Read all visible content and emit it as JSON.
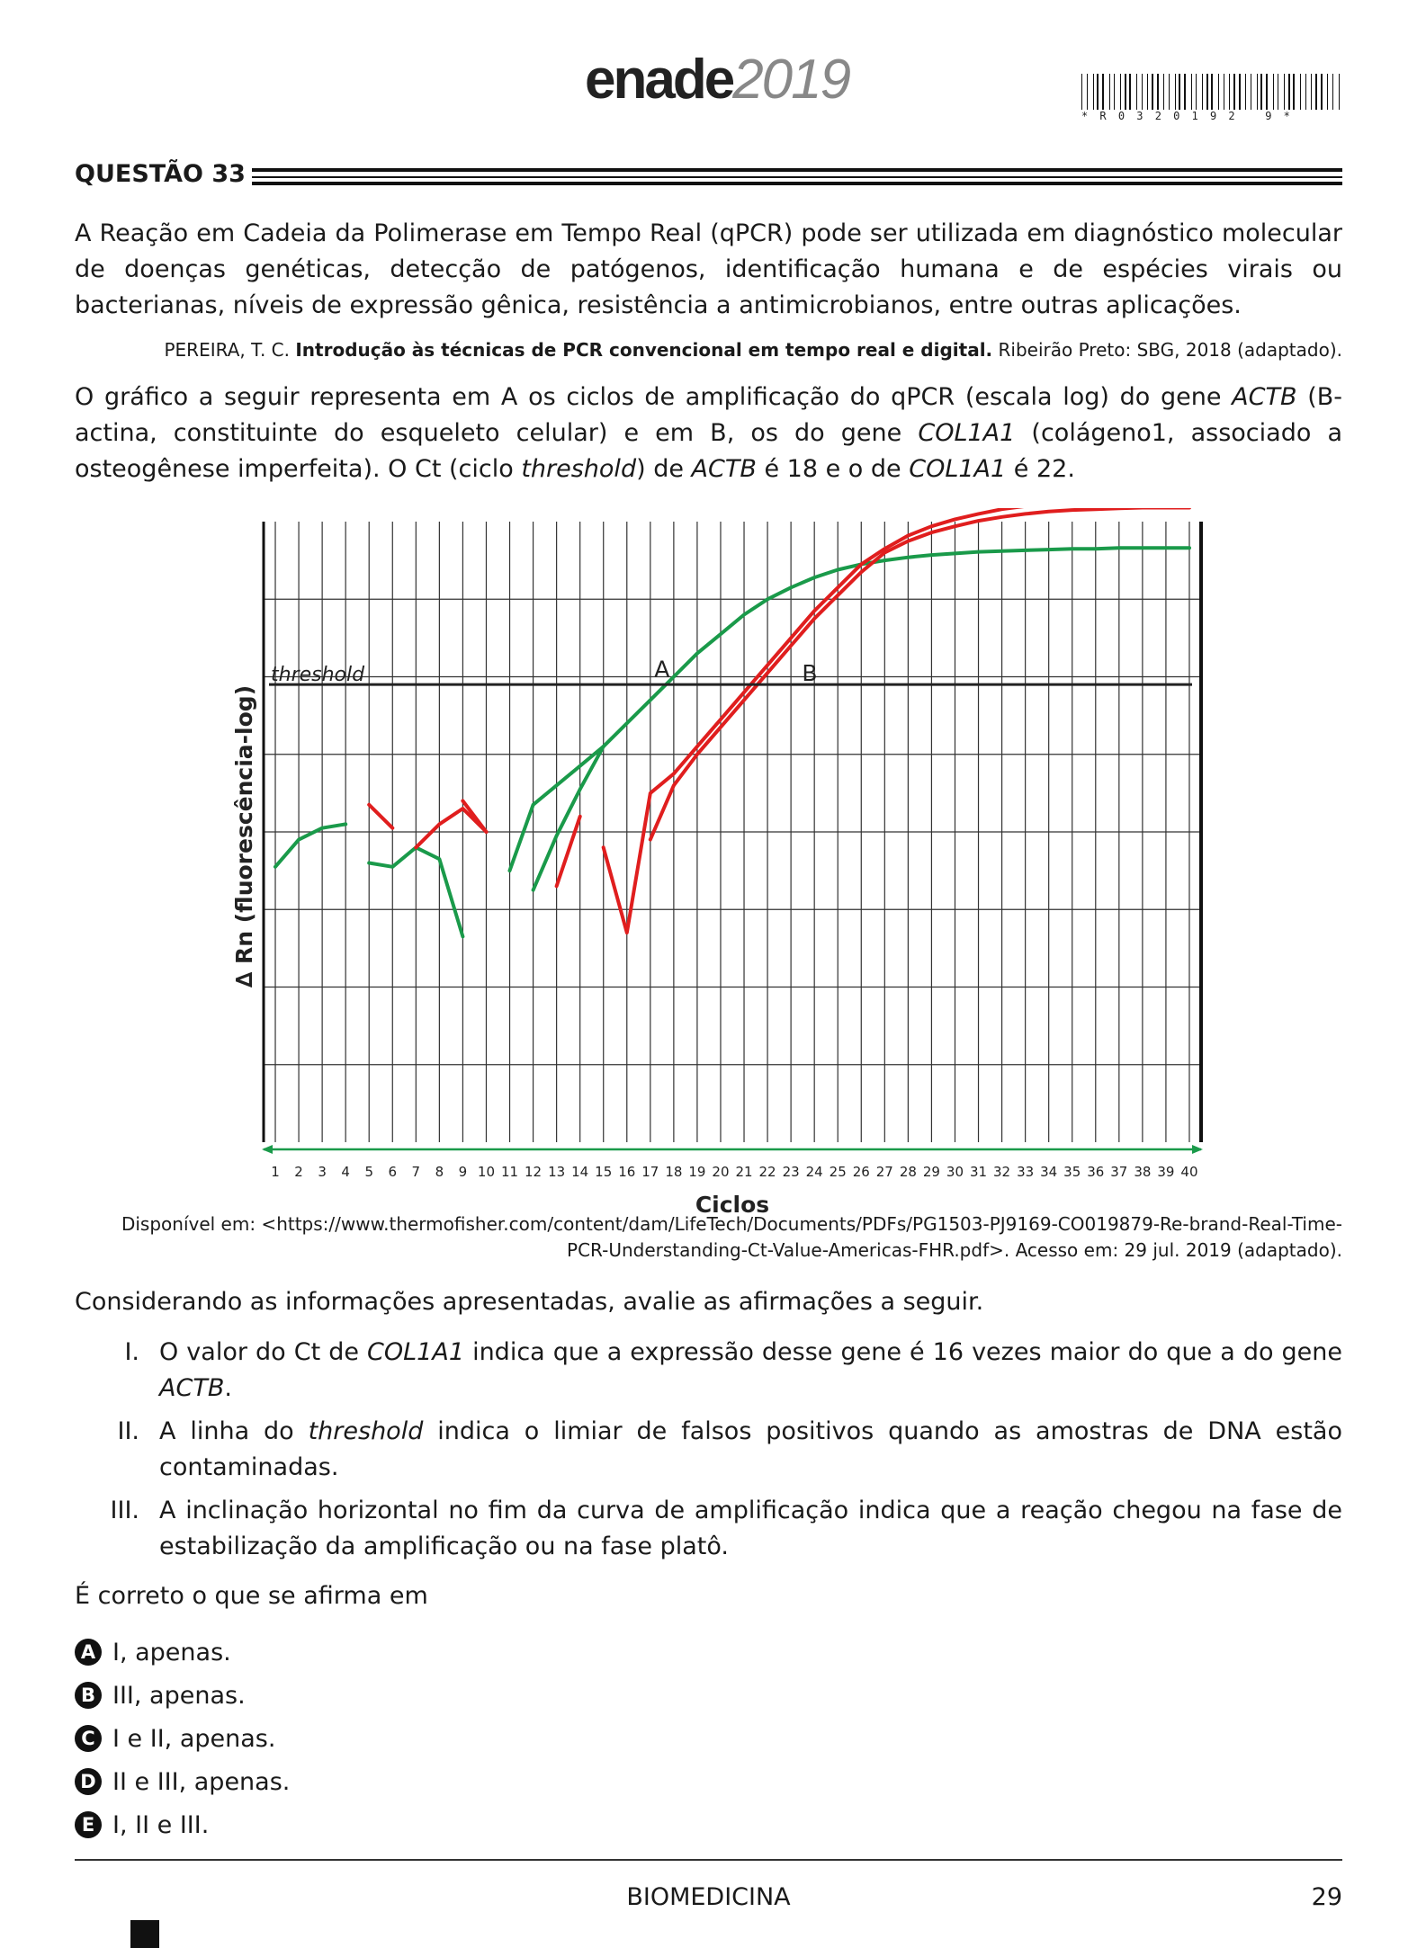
{
  "header": {
    "logo_word": "enade",
    "logo_year": "2019",
    "barcode_text": "*R0320192 9*"
  },
  "question": {
    "title": "QUESTÃO 33",
    "intro": "A Reação em Cadeia da Polimerase em Tempo Real (qPCR) pode ser utilizada em diagnóstico molecular de doenças genéticas, detecção de patógenos, identificação humana e de espécies virais ou bacterianas, níveis de expressão gênica, resistência a antimicrobianos, entre outras aplicações.",
    "citation_author": "PEREIRA, T. C. ",
    "citation_title": "Introdução às técnicas de PCR convencional em tempo real e digital.",
    "citation_rest": " Ribeirão Preto: SBG, 2018 (adaptado).",
    "graph_text_1": "O gráfico a seguir representa em A os ciclos de amplificação do qPCR (escala log) do gene ",
    "gene_actb": "ACTB",
    "graph_text_2": " (B-actina, constituinte do esqueleto celular) e em B, os do gene ",
    "gene_col": "COL1A1",
    "graph_text_3": " (colágeno1, associado a osteogênese imperfeita). O Ct (ciclo ",
    "threshold_word": "threshold",
    "graph_text_4": ") de ",
    "graph_text_5": " é 18 e o de ",
    "graph_text_6": " é 22.",
    "source_line_1": "Disponível em: <https://www.thermofisher.com/content/dam/LifeTech/Documents/PDFs/PG1503-PJ9169-CO019879-Re-brand-Real-Time-",
    "source_line_2": "PCR-Understanding-Ct-Value-Americas-FHR.pdf>. Acesso em: 29 jul. 2019 (adaptado).",
    "prompt": "Considerando as informações apresentadas, avalie as afirmações a seguir.",
    "statements": [
      {
        "num": "I.",
        "a": "O valor do Ct de ",
        "gene": "COL1A1",
        "b": " indica que a expressão desse gene é 16 vezes maior do que a do gene ",
        "gene2": "ACTB",
        "c": "."
      },
      {
        "num": "II.",
        "a": "A linha do ",
        "em": "threshold",
        "b": " indica o limiar de falsos positivos quando as amostras de DNA estão contaminadas."
      },
      {
        "num": "III.",
        "text": "A inclinação horizontal no fim da curva de amplificação indica que a reação chegou na fase de estabilização da amplificação ou na fase platô."
      }
    ],
    "ask": "É correto o que se afirma em",
    "options": [
      {
        "letter": "A",
        "text": "I, apenas."
      },
      {
        "letter": "B",
        "text": "III, apenas."
      },
      {
        "letter": "C",
        "text": "I e II, apenas."
      },
      {
        "letter": "D",
        "text": "II e III, apenas."
      },
      {
        "letter": "E",
        "text": "I, II e III."
      }
    ]
  },
  "chart_data": {
    "type": "line",
    "xlabel": "Ciclos",
    "ylabel": "∆ Rn (fluorescência-log)",
    "x_ticks": [
      1,
      2,
      3,
      4,
      5,
      6,
      7,
      8,
      9,
      10,
      11,
      12,
      13,
      14,
      15,
      16,
      17,
      18,
      19,
      20,
      21,
      22,
      23,
      24,
      25,
      26,
      27,
      28,
      29,
      30,
      31,
      32,
      33,
      34,
      35,
      36,
      37,
      38,
      39,
      40
    ],
    "xlim": [
      0.5,
      40.5
    ],
    "ylim": [
      0,
      8
    ],
    "threshold": {
      "label": "threshold",
      "y": 5.9
    },
    "annotations": [
      {
        "text": "A",
        "x": 17.5,
        "y": 6.0
      },
      {
        "text": "B",
        "x": 23.8,
        "y": 5.95
      }
    ],
    "colors": {
      "A": "#1a9a4a",
      "B": "#e01e1e",
      "threshold": "#222222",
      "axis": "#1a9a4a"
    },
    "series": [
      {
        "name": "A",
        "segments": [
          [
            [
              1,
              3.55
            ],
            [
              2,
              3.9
            ],
            [
              3,
              4.05
            ],
            [
              4,
              4.1
            ]
          ],
          [
            [
              5,
              3.6
            ],
            [
              6,
              3.55
            ],
            [
              7,
              3.8
            ],
            [
              8,
              3.65
            ],
            [
              9,
              2.65
            ]
          ],
          [
            [
              11,
              3.5
            ],
            [
              12,
              4.35
            ],
            [
              13,
              4.6
            ],
            [
              14,
              4.85
            ],
            [
              15,
              5.1
            ],
            [
              16,
              5.4
            ],
            [
              17,
              5.7
            ],
            [
              18,
              6.0
            ],
            [
              19,
              6.3
            ],
            [
              20,
              6.55
            ],
            [
              21,
              6.8
            ],
            [
              22,
              7.0
            ],
            [
              23,
              7.15
            ],
            [
              24,
              7.28
            ],
            [
              25,
              7.38
            ],
            [
              26,
              7.45
            ],
            [
              27,
              7.5
            ],
            [
              28,
              7.54
            ],
            [
              29,
              7.57
            ],
            [
              30,
              7.59
            ],
            [
              31,
              7.61
            ],
            [
              32,
              7.62
            ],
            [
              33,
              7.63
            ],
            [
              34,
              7.64
            ],
            [
              35,
              7.65
            ],
            [
              36,
              7.65
            ],
            [
              37,
              7.66
            ],
            [
              38,
              7.66
            ],
            [
              39,
              7.66
            ],
            [
              40,
              7.66
            ]
          ],
          [
            [
              12,
              3.25
            ],
            [
              13,
              3.95
            ],
            [
              14,
              4.55
            ],
            [
              15,
              5.1
            ]
          ]
        ]
      },
      {
        "name": "B",
        "segments": [
          [
            [
              5,
              4.35
            ],
            [
              6,
              4.05
            ]
          ],
          [
            [
              7,
              3.8
            ],
            [
              8,
              4.1
            ],
            [
              9,
              4.3
            ],
            [
              10,
              4.0
            ]
          ],
          [
            [
              9,
              4.4
            ],
            [
              10,
              4.0
            ]
          ],
          [
            [
              13,
              3.3
            ],
            [
              14,
              4.2
            ]
          ],
          [
            [
              15,
              3.8
            ],
            [
              16,
              2.7
            ],
            [
              17,
              4.5
            ],
            [
              18,
              4.75
            ],
            [
              19,
              5.1
            ],
            [
              20,
              5.45
            ],
            [
              21,
              5.8
            ],
            [
              22,
              6.15
            ],
            [
              23,
              6.5
            ],
            [
              24,
              6.85
            ],
            [
              25,
              7.15
            ],
            [
              26,
              7.45
            ],
            [
              27,
              7.65
            ],
            [
              28,
              7.82
            ],
            [
              29,
              7.94
            ],
            [
              30,
              8.03
            ],
            [
              31,
              8.1
            ],
            [
              32,
              8.16
            ],
            [
              33,
              8.2
            ],
            [
              34,
              8.24
            ],
            [
              35,
              8.26
            ],
            [
              36,
              8.28
            ],
            [
              37,
              8.29
            ],
            [
              38,
              8.3
            ],
            [
              39,
              8.3
            ],
            [
              40,
              8.3
            ]
          ],
          [
            [
              17,
              3.9
            ],
            [
              18,
              4.6
            ],
            [
              19,
              5.0
            ],
            [
              20,
              5.35
            ],
            [
              21,
              5.7
            ],
            [
              22,
              6.05
            ],
            [
              23,
              6.4
            ],
            [
              24,
              6.75
            ],
            [
              25,
              7.05
            ],
            [
              26,
              7.35
            ],
            [
              27,
              7.6
            ],
            [
              28,
              7.75
            ],
            [
              29,
              7.86
            ],
            [
              30,
              7.94
            ],
            [
              31,
              8.01
            ],
            [
              32,
              8.06
            ],
            [
              33,
              8.1
            ],
            [
              34,
              8.13
            ],
            [
              35,
              8.15
            ],
            [
              36,
              8.16
            ],
            [
              37,
              8.17
            ],
            [
              38,
              8.18
            ],
            [
              39,
              8.18
            ],
            [
              40,
              8.18
            ]
          ]
        ]
      }
    ]
  },
  "footer": {
    "subject": "BIOMEDICINA",
    "page": "29"
  }
}
